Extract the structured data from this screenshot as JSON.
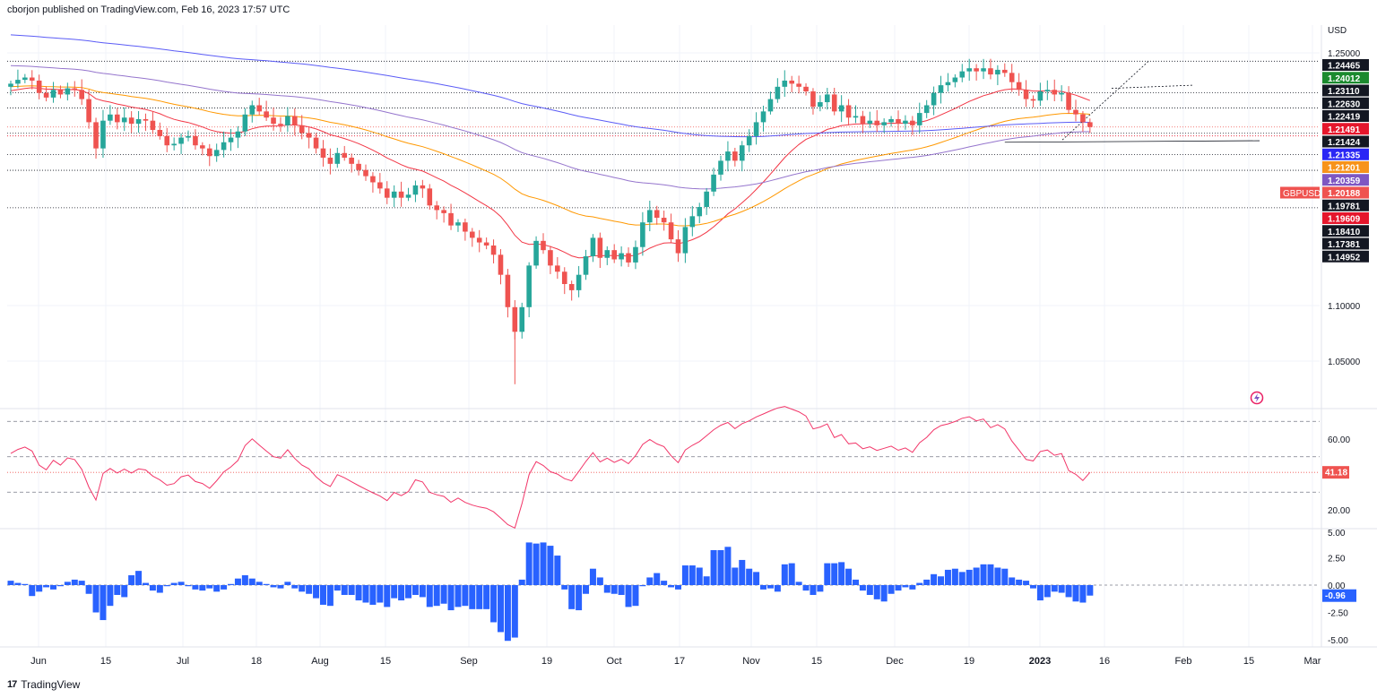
{
  "header": {
    "published": "cborjon published on TradingView.com, Feb 16, 2023 17:57 UTC"
  },
  "footer": {
    "logo": "17",
    "brand": "TradingView"
  },
  "colors": {
    "up": "#26a69a",
    "down": "#ef5350",
    "ema20": "#f23645",
    "ema50": "#ff9800",
    "ema100": "#9575cd",
    "ema200": "#5b5cf6",
    "rsi": "#f23669",
    "hist": "#2962ff"
  },
  "chart_data": [
    {
      "type": "candlestick",
      "title": "",
      "symbol": "GBPUSD",
      "currency_label": "USD",
      "last_price": "1.20188",
      "x_tick_labels": [
        "Jun",
        "15",
        "Jul",
        "18",
        "Aug",
        "15",
        "Sep",
        "19",
        "Oct",
        "17",
        "Nov",
        "15",
        "Dec",
        "19",
        "2023",
        "16",
        "Feb",
        "15",
        "Mar"
      ],
      "y_tick_labels": [
        "1.25000",
        "1.10000",
        "1.05000"
      ],
      "ylim": [
        1.02,
        1.29
      ],
      "price_tags": [
        {
          "label": "1.24465",
          "color": "#131722"
        },
        {
          "label": "1.24012",
          "color": "#1b8a2e"
        },
        {
          "label": "1.23110",
          "color": "#131722"
        },
        {
          "label": "1.22630",
          "color": "#131722"
        },
        {
          "label": "1.22419",
          "color": "#131722"
        },
        {
          "label": "1.21491",
          "color": "#e5162c"
        },
        {
          "label": "1.21424",
          "color": "#131722"
        },
        {
          "label": "1.21335",
          "color": "#2a26f5"
        },
        {
          "label": "1.21201",
          "color": "#f7931a"
        },
        {
          "label": "1.20359",
          "color": "#7e57c2"
        },
        {
          "label": "1.20188",
          "color": "#ef5350"
        },
        {
          "label": "1.19781",
          "color": "#131722"
        },
        {
          "label": "1.19609",
          "color": "#e5162c"
        },
        {
          "label": "1.18410",
          "color": "#131722"
        },
        {
          "label": "1.17381",
          "color": "#131722"
        },
        {
          "label": "1.14952",
          "color": "#131722"
        }
      ],
      "horizontal_levels": [
        1.2446,
        1.2242,
        1.2142,
        1.1978,
        1.1841,
        1.1738,
        1.1495
      ],
      "close": [
        1.23,
        1.2325,
        1.234,
        1.232,
        1.224,
        1.221,
        1.226,
        1.223,
        1.227,
        1.226,
        1.22,
        1.205,
        1.188,
        1.206,
        1.21,
        1.205,
        1.208,
        1.204,
        1.207,
        1.206,
        1.2,
        1.196,
        1.19,
        1.191,
        1.195,
        1.196,
        1.19,
        1.188,
        1.183,
        1.187,
        1.192,
        1.195,
        1.199,
        1.21,
        1.216,
        1.212,
        1.208,
        1.204,
        1.203,
        1.209,
        1.203,
        1.198,
        1.195,
        1.188,
        1.182,
        1.178,
        1.185,
        1.182,
        1.178,
        1.174,
        1.17,
        1.166,
        1.162,
        1.156,
        1.16,
        1.156,
        1.158,
        1.164,
        1.162,
        1.151,
        1.148,
        1.146,
        1.138,
        1.14,
        1.134,
        1.13,
        1.127,
        1.125,
        1.119,
        1.106,
        1.085,
        1.069,
        1.085,
        1.112,
        1.128,
        1.122,
        1.112,
        1.108,
        1.1,
        1.096,
        1.106,
        1.118,
        1.13,
        1.117,
        1.122,
        1.116,
        1.12,
        1.114,
        1.124,
        1.14,
        1.148,
        1.143,
        1.14,
        1.129,
        1.12,
        1.137,
        1.144,
        1.15,
        1.16,
        1.171,
        1.18,
        1.186,
        1.18,
        1.19,
        1.196,
        1.205,
        1.212,
        1.22,
        1.228,
        1.232,
        1.23,
        1.228,
        1.225,
        1.215,
        1.218,
        1.223,
        1.212,
        1.216,
        1.208,
        1.209,
        1.204,
        1.206,
        1.203,
        1.205,
        1.207,
        1.204,
        1.206,
        1.203,
        1.211,
        1.216,
        1.224,
        1.229,
        1.231,
        1.234,
        1.238,
        1.24,
        1.238,
        1.24,
        1.236,
        1.239,
        1.237,
        1.231,
        1.226,
        1.22,
        1.219,
        1.225,
        1.226,
        1.223,
        1.224,
        1.213,
        1.2101,
        1.205,
        1.2019
      ],
      "indicators": [
        "EMA 20",
        "EMA 50",
        "EMA 100",
        "EMA 200"
      ]
    },
    {
      "type": "line",
      "title": "",
      "series_name": "",
      "last_value_label": "41.18",
      "y_tick_labels": [
        "60.00",
        "20.00"
      ],
      "ylim": [
        10,
        80
      ],
      "levels": [
        70,
        50,
        30
      ]
    },
    {
      "type": "bar",
      "title": "",
      "last_value_label": "-0.96",
      "y_tick_labels": [
        "5.00",
        "2.50",
        "0.00",
        "-2.50",
        "-5.00"
      ],
      "ylim": [
        -5.2,
        5.0
      ],
      "values": [
        0.4,
        0.2,
        0.1,
        -1.0,
        -0.6,
        -0.2,
        -0.4,
        -0.1,
        0.3,
        0.5,
        0.4,
        -0.8,
        -2.5,
        -3.2,
        -1.9,
        -0.9,
        -1.1,
        0.9,
        1.3,
        0.2,
        -0.5,
        -0.7,
        -0.1,
        0.2,
        0.3,
        -0.1,
        -0.4,
        -0.5,
        -0.3,
        -0.6,
        -0.4,
        0.1,
        0.6,
        0.9,
        0.6,
        0.3,
        0.1,
        -0.2,
        -0.3,
        0.3,
        -0.3,
        -0.6,
        -0.8,
        -1.2,
        -1.8,
        -1.9,
        -0.5,
        -0.9,
        -0.9,
        -1.4,
        -1.6,
        -1.8,
        -1.6,
        -2.0,
        -1.2,
        -1.4,
        -1.2,
        -0.9,
        -1.1,
        -2.0,
        -1.9,
        -1.7,
        -2.3,
        -2.0,
        -1.9,
        -2.2,
        -2.2,
        -2.2,
        -3.4,
        -4.3,
        -5.1,
        -4.8,
        0.5,
        3.9,
        3.8,
        3.9,
        3.6,
        2.7,
        -0.4,
        -2.2,
        -2.3,
        -0.8,
        1.5,
        0.7,
        -0.7,
        -0.8,
        -0.9,
        -2.0,
        -1.9,
        -0.1,
        0.7,
        1.1,
        0.4,
        -0.2,
        -0.4,
        1.8,
        1.8,
        1.6,
        0.8,
        3.2,
        3.2,
        3.5,
        1.6,
        2.3,
        1.5,
        1.2,
        -0.4,
        -0.3,
        -0.6,
        1.9,
        2.0,
        0.3,
        -0.5,
        -0.9,
        -0.6,
        2.0,
        2.0,
        2.1,
        1.5,
        0.5,
        -0.5,
        -0.9,
        -1.3,
        -1.5,
        -0.8,
        -0.5,
        -0.2,
        -0.4,
        0.2,
        0.5,
        1.0,
        0.8,
        1.4,
        1.5,
        1.2,
        1.4,
        1.6,
        1.9,
        1.9,
        1.6,
        1.5,
        0.7,
        0.5,
        0.4,
        -0.3,
        -1.4,
        -1.1,
        -0.6,
        -0.7,
        -1.1,
        -1.5,
        -1.6,
        -0.96
      ]
    }
  ]
}
